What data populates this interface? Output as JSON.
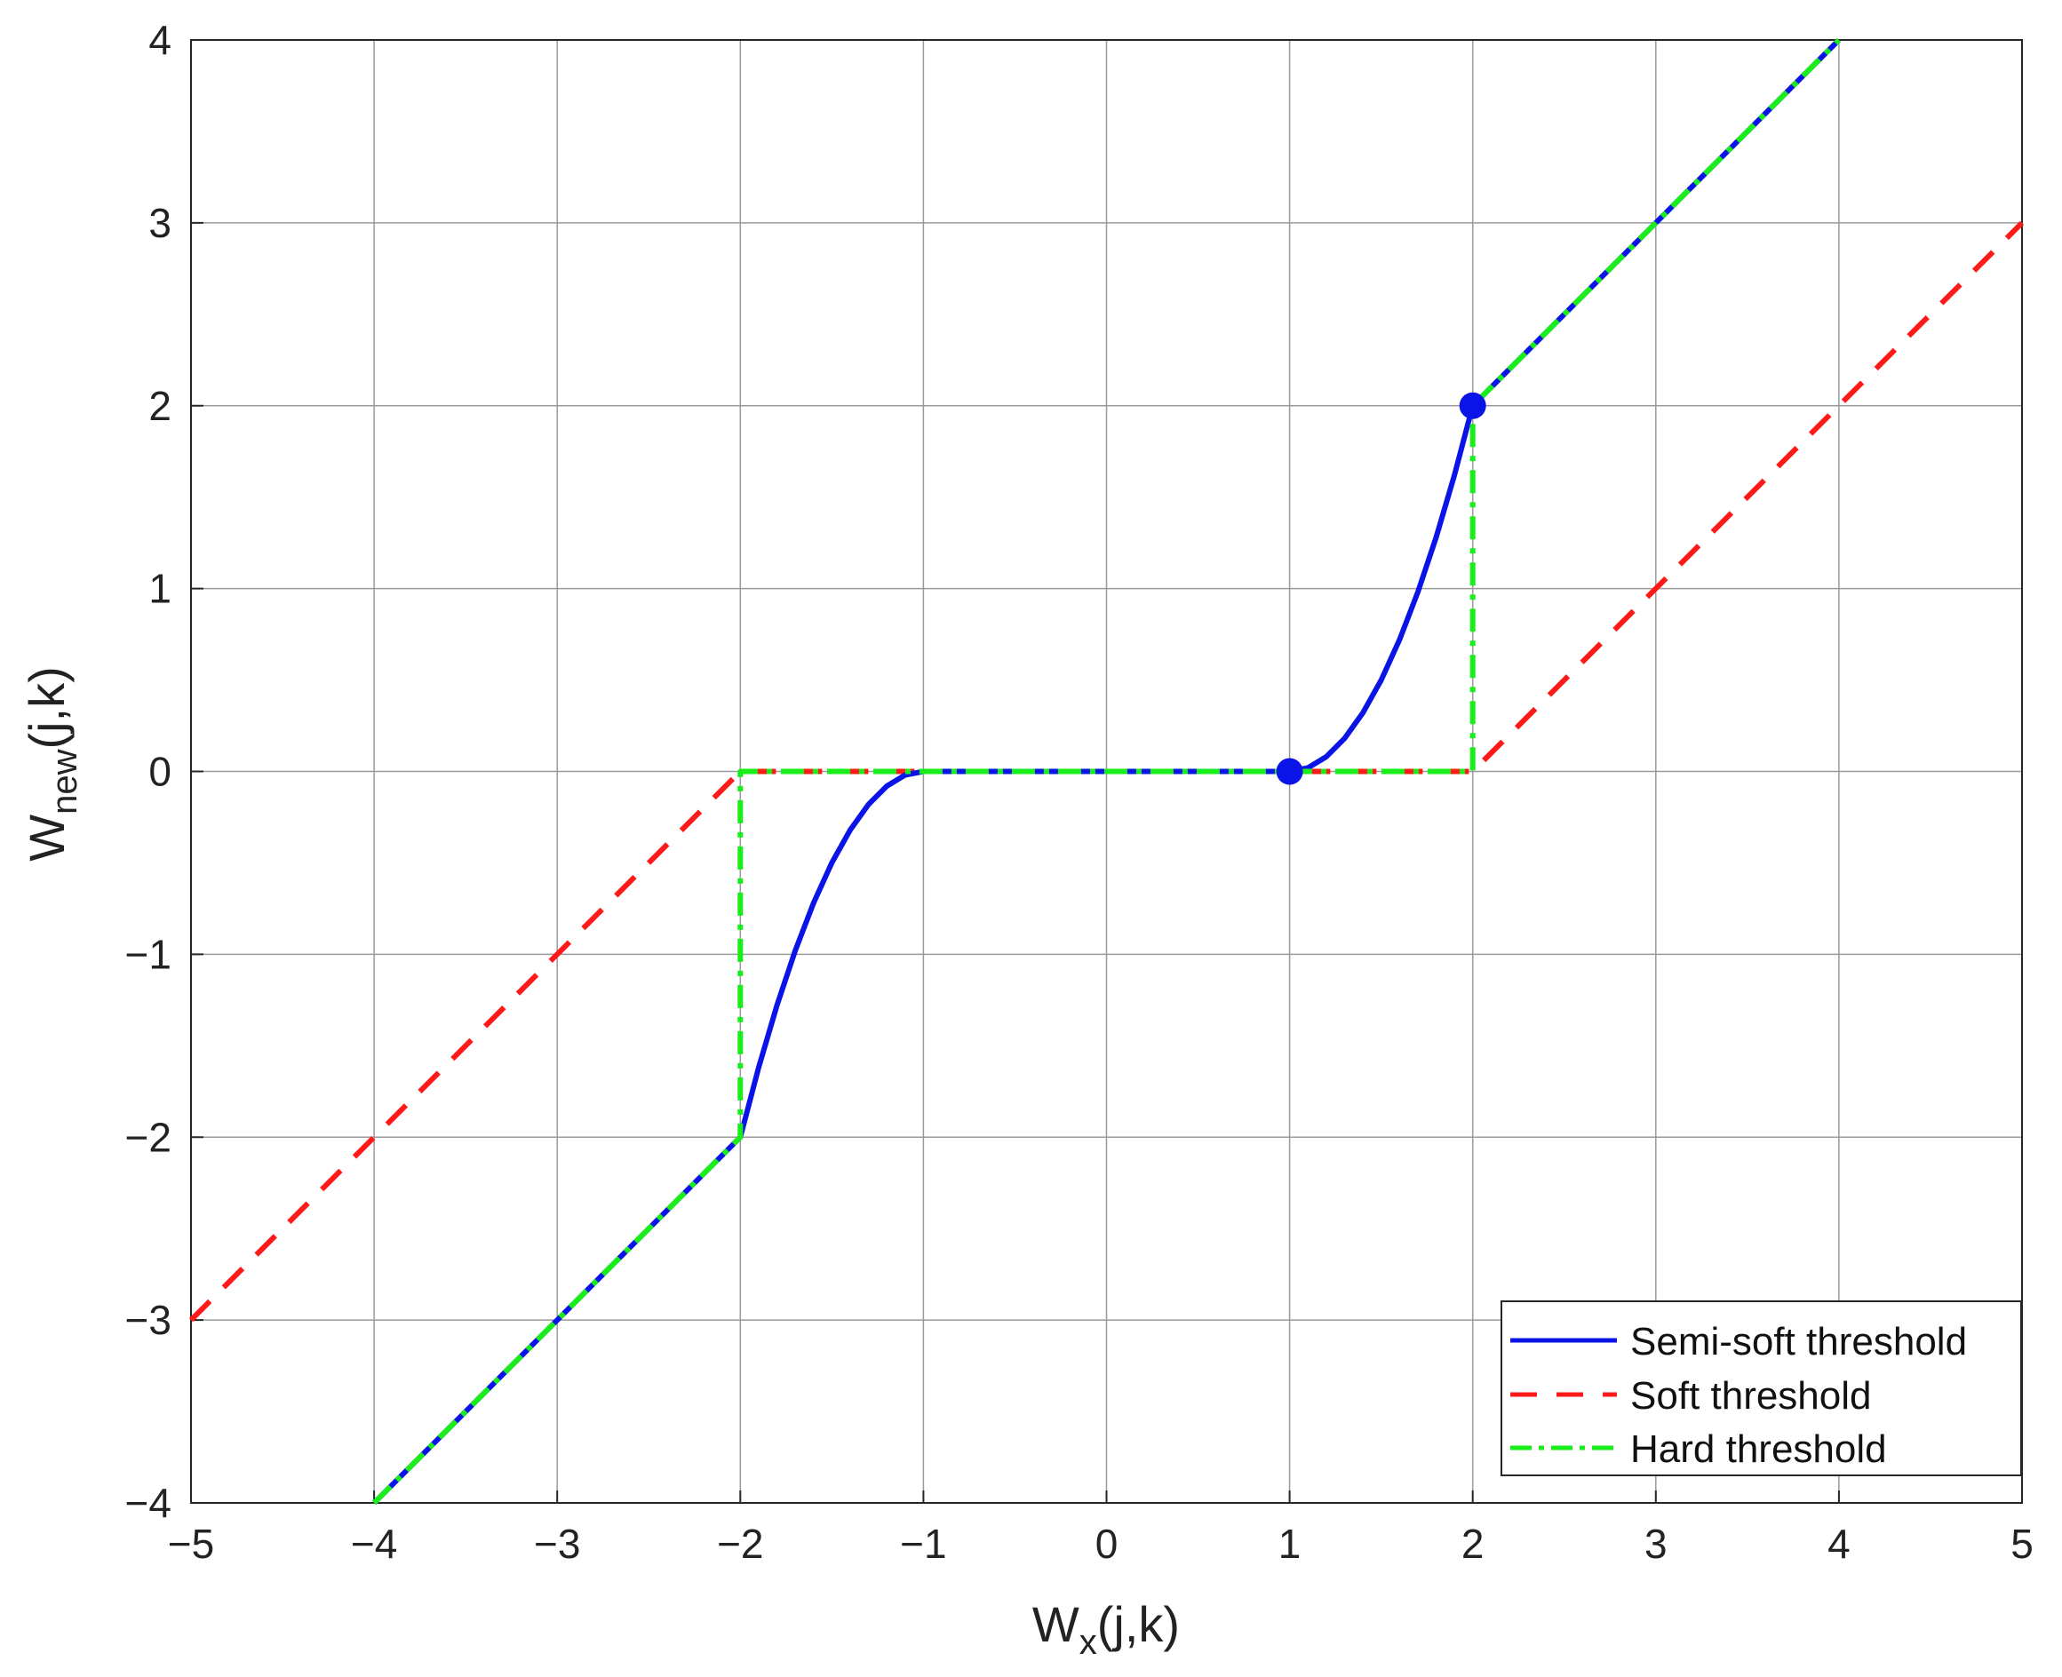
{
  "chart_data": {
    "type": "line",
    "xlabel": {
      "main": "W",
      "sub": "x",
      "suffix": "(j,k)"
    },
    "ylabel": {
      "main": "W",
      "sub": "new",
      "suffix": "(j,k)"
    },
    "xlim": [
      -5,
      5
    ],
    "ylim": [
      -4,
      4
    ],
    "xticks": [
      -5,
      -4,
      -3,
      -2,
      -1,
      0,
      1,
      2,
      3,
      4,
      5
    ],
    "yticks": [
      -4,
      -3,
      -2,
      -1,
      0,
      1,
      2,
      3,
      4
    ],
    "xtick_labels": [
      "−5",
      "−4",
      "−3",
      "−2",
      "−1",
      "0",
      "1",
      "2",
      "3",
      "4",
      "5"
    ],
    "ytick_labels": [
      "−4",
      "−3",
      "−2",
      "−1",
      "0",
      "1",
      "2",
      "3",
      "4"
    ],
    "grid": true,
    "legend_position": "bottom-right",
    "series": [
      {
        "name": "Semi-soft threshold",
        "color": "#0a14e6",
        "style": "solid",
        "x": [
          -4,
          -2,
          -1.9,
          -1.8,
          -1.7,
          -1.6,
          -1.5,
          -1.4,
          -1.3,
          -1.2,
          -1.1,
          -1,
          1,
          1.1,
          1.2,
          1.3,
          1.4,
          1.5,
          1.6,
          1.7,
          1.8,
          1.9,
          2,
          4
        ],
        "y": [
          -4,
          -2,
          -1.62,
          -1.28,
          -0.98,
          -0.72,
          -0.5,
          -0.32,
          -0.18,
          -0.08,
          -0.02,
          0,
          0,
          0.02,
          0.08,
          0.18,
          0.32,
          0.5,
          0.72,
          0.98,
          1.28,
          1.62,
          2,
          4
        ]
      },
      {
        "name": "Soft threshold",
        "color": "#ff1a1a",
        "style": "dashed",
        "x": [
          -5,
          -2,
          2,
          5
        ],
        "y": [
          -3,
          0,
          0,
          3
        ]
      },
      {
        "name": "Hard threshold",
        "color": "#1aee1a",
        "style": "dashdot",
        "x": [
          -4,
          -2,
          -2,
          2,
          2,
          4
        ],
        "y": [
          -4,
          -2,
          0,
          0,
          2,
          4
        ]
      }
    ],
    "markers": [
      {
        "x": 1,
        "y": 0,
        "color": "#0a14e6"
      },
      {
        "x": 2,
        "y": 2,
        "color": "#0a14e6"
      }
    ]
  }
}
